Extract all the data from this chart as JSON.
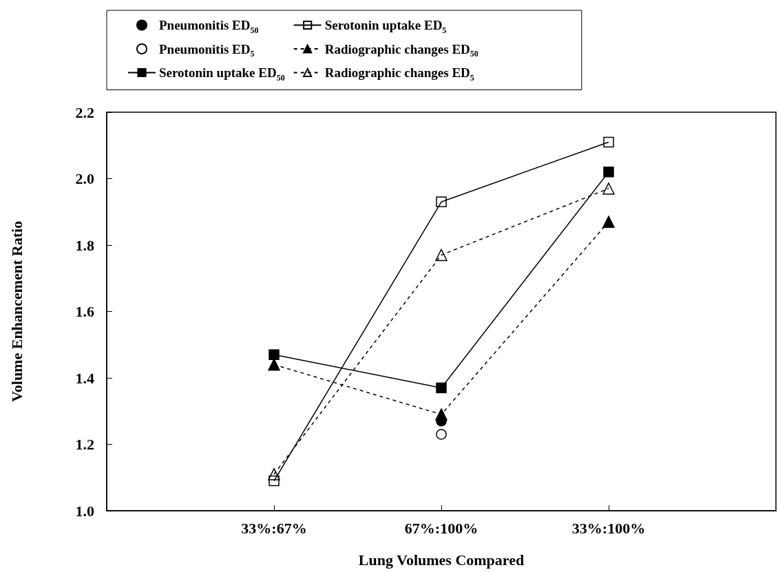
{
  "chart_data": {
    "type": "line",
    "xlabel": "Lung Volumes Compared",
    "ylabel": "Volume Enhancement Ratio",
    "categories": [
      null,
      "33%:67%",
      "67%:100%",
      "33%:100%",
      null
    ],
    "series": [
      {
        "name": "Pneumonitis ED$_{50}$",
        "type": "scatter",
        "color": "#000000",
        "marker": "circle",
        "values": [
          null,
          null,
          1.27,
          null,
          null
        ]
      },
      {
        "name": "Pneumonitis ED$_{5}$",
        "type": "scatter",
        "color": "#000000",
        "marker": "circle",
        "values": [
          null,
          null,
          1.23,
          null,
          null
        ]
      },
      {
        "name": "Serotonin uptake ED$_{50}$",
        "color": "#000000",
        "marker": "square",
        "line_style": "solid",
        "values": [
          null,
          1.47,
          1.37,
          2.02,
          null
        ]
      },
      {
        "name": "Serotonin uptake ED$_{5}$",
        "color": "#000000",
        "marker": "square",
        "line_style": "solid",
        "values": [
          null,
          1.09,
          1.93,
          2.11,
          null
        ]
      },
      {
        "name": "Radiographic changes ED$_{50}$",
        "color": "#000000",
        "marker": "triangle",
        "line_style": "dashed",
        "values": [
          null,
          1.44,
          1.29,
          1.87,
          null
        ]
      },
      {
        "name": "Radiographic changes ED$_{5}$",
        "color": "#000000",
        "marker": "triangle",
        "line_style": "dashed",
        "values": [
          null,
          1.11,
          1.77,
          1.97,
          null
        ]
      }
    ],
    "ylim": [
      1.0,
      2.2
    ],
    "yticks": [
      {
        "value": 1.0,
        "label": "1.0"
      },
      {
        "value": 1.2,
        "label": "1.2"
      },
      {
        "value": 1.4,
        "label": "1.4"
      },
      {
        "value": 1.6,
        "label": "1.6"
      },
      {
        "value": 1.8,
        "label": "1.8"
      },
      {
        "value": 2.0,
        "label": "2.0"
      },
      {
        "value": 2.2,
        "label": "2.2"
      }
    ],
    "grid": false,
    "legend": "top"
  }
}
